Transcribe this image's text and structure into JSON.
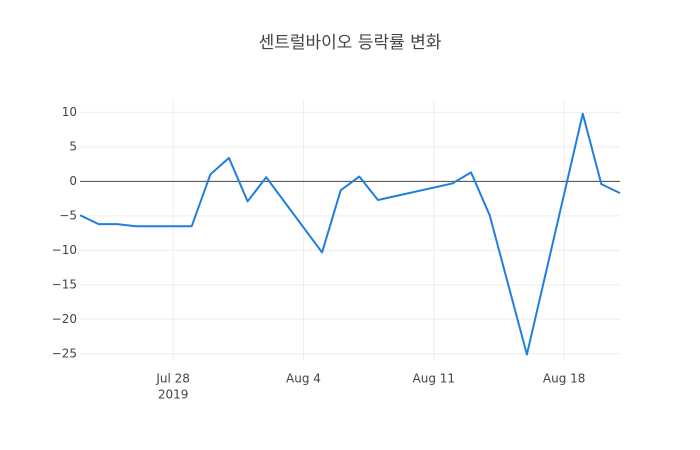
{
  "chart_data": {
    "type": "line",
    "title": "센트럴바이오 등락률 변화",
    "x": [
      "2019-07-23",
      "2019-07-24",
      "2019-07-25",
      "2019-07-26",
      "2019-07-29",
      "2019-07-30",
      "2019-07-31",
      "2019-08-01",
      "2019-08-02",
      "2019-08-05",
      "2019-08-06",
      "2019-08-07",
      "2019-08-08",
      "2019-08-12",
      "2019-08-13",
      "2019-08-14",
      "2019-08-16",
      "2019-08-19",
      "2019-08-20",
      "2019-08-21"
    ],
    "series": [
      {
        "color": "#1f7fe0",
        "values": [
          -4.9,
          -6.2,
          -6.2,
          -6.5,
          -6.5,
          1.0,
          3.4,
          -2.9,
          0.6,
          -10.3,
          -1.3,
          0.7,
          -2.7,
          -0.3,
          1.3,
          -4.9,
          -25.1,
          9.8,
          -0.4,
          -1.7
        ]
      }
    ],
    "xlim": [
      "2019-07-23",
      "2019-08-21"
    ],
    "xticks": [
      {
        "value": "2019-07-28",
        "label": "Jul 28",
        "sublabel": "2019"
      },
      {
        "value": "2019-08-04",
        "label": "Aug 4"
      },
      {
        "value": "2019-08-11",
        "label": "Aug 11"
      },
      {
        "value": "2019-08-18",
        "label": "Aug 18"
      }
    ],
    "ylim": [
      -25.9,
      11.8
    ],
    "yticks": [
      10,
      5,
      0,
      -5,
      -10,
      -15,
      -20,
      -25
    ],
    "yticklabels": [
      "10",
      "5",
      "0",
      "−5",
      "−10",
      "−15",
      "−20",
      "−25"
    ],
    "grid": true,
    "zeroline": true
  }
}
